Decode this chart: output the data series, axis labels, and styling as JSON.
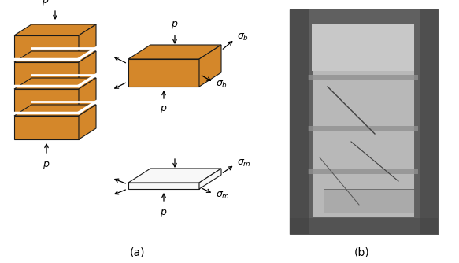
{
  "fig_width": 5.83,
  "fig_height": 3.34,
  "dpi": 100,
  "bg_color": "#ffffff",
  "brick_color": "#D4872A",
  "brick_edge_color": "#1a1a1a",
  "mortar_color": "#ffffff",
  "label_a": "(a)",
  "label_b": "(b)",
  "annotation_fontsize": 9
}
